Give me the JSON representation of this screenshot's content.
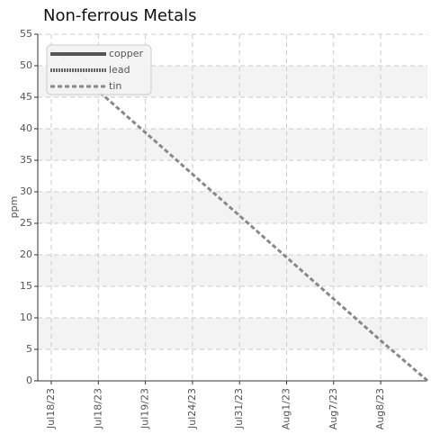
{
  "chart_data": {
    "type": "line",
    "title": "Non-ferrous Metals",
    "y_label": "ppm",
    "categories": [
      "Jul18/23",
      "Jul18/23",
      "Jul19/23",
      "Jul24/23",
      "Jul31/23",
      "Aug1/23",
      "Aug7/23",
      "Aug8/23",
      null
    ],
    "series": [
      {
        "name": "copper",
        "color": "#555555",
        "values": [
          null,
          null,
          null,
          null,
          null,
          null,
          null,
          null,
          null
        ]
      },
      {
        "name": "lead",
        "color": "#666666",
        "values": [
          null,
          null,
          null,
          null,
          null,
          null,
          null,
          null,
          null
        ]
      },
      {
        "name": "tin",
        "color": "#888888",
        "values": [
          52.6,
          46,
          39.4,
          32.8,
          26.2,
          19.6,
          13,
          6.4,
          0
        ]
      }
    ],
    "ylim": [
      0,
      55
    ],
    "yticks": [
      0,
      5,
      10,
      15,
      20,
      25,
      30,
      35,
      40,
      45,
      50,
      55
    ],
    "grid": true,
    "legend": "top-left"
  }
}
